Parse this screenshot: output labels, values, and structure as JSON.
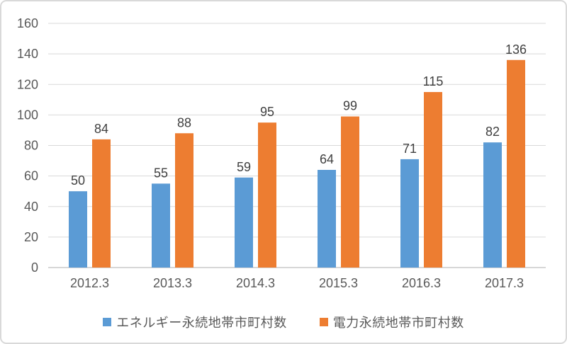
{
  "chart_data": {
    "type": "bar",
    "title": "",
    "xlabel": "",
    "ylabel": "",
    "categories": [
      "2012.3",
      "2013.3",
      "2014.3",
      "2015.3",
      "2016.3",
      "2017.3"
    ],
    "series": [
      {
        "name": "エネルギー永続地帯市町村数",
        "color": "#5B9BD5",
        "values": [
          50,
          55,
          59,
          64,
          71,
          82
        ]
      },
      {
        "name": "電力永続地帯市町村数",
        "color": "#ED7D31",
        "values": [
          84,
          88,
          95,
          99,
          115,
          136
        ]
      }
    ],
    "ylim": [
      0,
      160
    ],
    "ytick_step": 20,
    "ytick_labels": [
      "0",
      "20",
      "40",
      "60",
      "80",
      "100",
      "120",
      "140",
      "160"
    ],
    "grid": true,
    "value_labels_shown": true,
    "legend_position": "bottom"
  },
  "style": {
    "background": "#FFFFFF",
    "border_color": "#D9D9D9",
    "grid_color": "#D9D9D9",
    "axis_line_color": "#BFBFBF",
    "tick_text_color": "#595959",
    "value_label_color": "#404040",
    "legend_text_color": "#595959"
  }
}
